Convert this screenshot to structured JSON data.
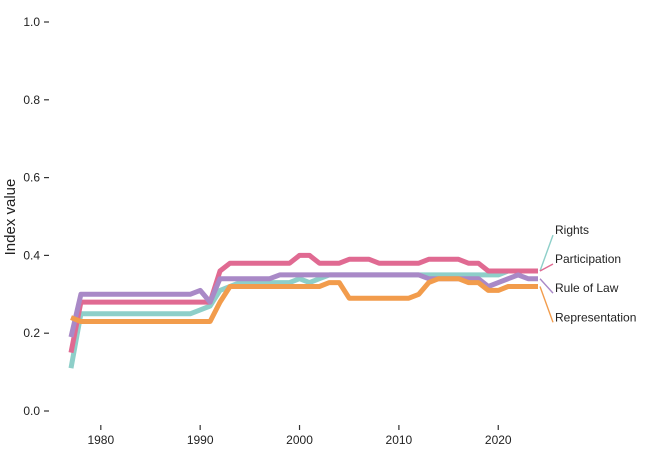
{
  "chart_data": {
    "type": "line",
    "title": "",
    "xlabel": "",
    "ylabel": "Index value",
    "xlim": [
      1976,
      2027
    ],
    "ylim": [
      0,
      1
    ],
    "x_ticks": [
      1980,
      1990,
      2000,
      2010,
      2020
    ],
    "y_ticks": [
      0.0,
      0.2,
      0.4,
      0.6,
      0.8,
      1.0
    ],
    "y_tick_labels": [
      "0.0",
      "0.2",
      "0.4",
      "0.6",
      "0.8",
      "1.0"
    ],
    "grid": false,
    "legend": "direct labels at right end of lines",
    "x": [
      1977,
      1978,
      1979,
      1980,
      1981,
      1982,
      1983,
      1984,
      1985,
      1986,
      1987,
      1988,
      1989,
      1990,
      1991,
      1992,
      1993,
      1994,
      1995,
      1996,
      1997,
      1998,
      1999,
      2000,
      2001,
      2002,
      2003,
      2004,
      2005,
      2006,
      2007,
      2008,
      2009,
      2010,
      2011,
      2012,
      2013,
      2014,
      2015,
      2016,
      2017,
      2018,
      2019,
      2020,
      2021,
      2022,
      2023,
      2024
    ],
    "series": [
      {
        "name": "Rights",
        "color": "#8ecfc9",
        "values": [
          0.11,
          0.25,
          0.25,
          0.25,
          0.25,
          0.25,
          0.25,
          0.25,
          0.25,
          0.25,
          0.25,
          0.25,
          0.25,
          0.26,
          0.27,
          0.31,
          0.32,
          0.33,
          0.33,
          0.33,
          0.33,
          0.33,
          0.33,
          0.34,
          0.33,
          0.34,
          0.35,
          0.35,
          0.35,
          0.35,
          0.35,
          0.35,
          0.35,
          0.35,
          0.35,
          0.35,
          0.35,
          0.35,
          0.35,
          0.35,
          0.35,
          0.35,
          0.35,
          0.35,
          0.36,
          0.36,
          0.36,
          0.36
        ]
      },
      {
        "name": "Participation",
        "color": "#e06a92",
        "values": [
          0.15,
          0.28,
          0.28,
          0.28,
          0.28,
          0.28,
          0.28,
          0.28,
          0.28,
          0.28,
          0.28,
          0.28,
          0.28,
          0.28,
          0.28,
          0.36,
          0.38,
          0.38,
          0.38,
          0.38,
          0.38,
          0.38,
          0.38,
          0.4,
          0.4,
          0.38,
          0.38,
          0.38,
          0.39,
          0.39,
          0.39,
          0.38,
          0.38,
          0.38,
          0.38,
          0.38,
          0.39,
          0.39,
          0.39,
          0.39,
          0.38,
          0.38,
          0.36,
          0.36,
          0.36,
          0.36,
          0.36,
          0.36
        ]
      },
      {
        "name": "Rule of Law",
        "color": "#a989c7",
        "values": [
          0.19,
          0.3,
          0.3,
          0.3,
          0.3,
          0.3,
          0.3,
          0.3,
          0.3,
          0.3,
          0.3,
          0.3,
          0.3,
          0.31,
          0.28,
          0.34,
          0.34,
          0.34,
          0.34,
          0.34,
          0.34,
          0.35,
          0.35,
          0.35,
          0.35,
          0.35,
          0.35,
          0.35,
          0.35,
          0.35,
          0.35,
          0.35,
          0.35,
          0.35,
          0.35,
          0.35,
          0.34,
          0.34,
          0.34,
          0.34,
          0.34,
          0.34,
          0.32,
          0.33,
          0.34,
          0.35,
          0.34,
          0.34
        ]
      },
      {
        "name": "Representation",
        "color": "#f29c4c",
        "values": [
          0.24,
          0.23,
          0.23,
          0.23,
          0.23,
          0.23,
          0.23,
          0.23,
          0.23,
          0.23,
          0.23,
          0.23,
          0.23,
          0.23,
          0.23,
          0.28,
          0.32,
          0.32,
          0.32,
          0.32,
          0.32,
          0.32,
          0.32,
          0.32,
          0.32,
          0.32,
          0.33,
          0.33,
          0.29,
          0.29,
          0.29,
          0.29,
          0.29,
          0.29,
          0.29,
          0.3,
          0.33,
          0.34,
          0.34,
          0.34,
          0.33,
          0.33,
          0.31,
          0.31,
          0.32,
          0.32,
          0.32,
          0.32
        ]
      }
    ],
    "direct_labels": [
      {
        "series": "Rights",
        "text": "Rights",
        "label_value": 0.452
      },
      {
        "series": "Participation",
        "text": "Participation",
        "label_value": 0.378
      },
      {
        "series": "Rule of Law",
        "text": "Rule of Law",
        "label_value": 0.303
      },
      {
        "series": "Representation",
        "text": "Representation",
        "label_value": 0.228
      }
    ]
  }
}
